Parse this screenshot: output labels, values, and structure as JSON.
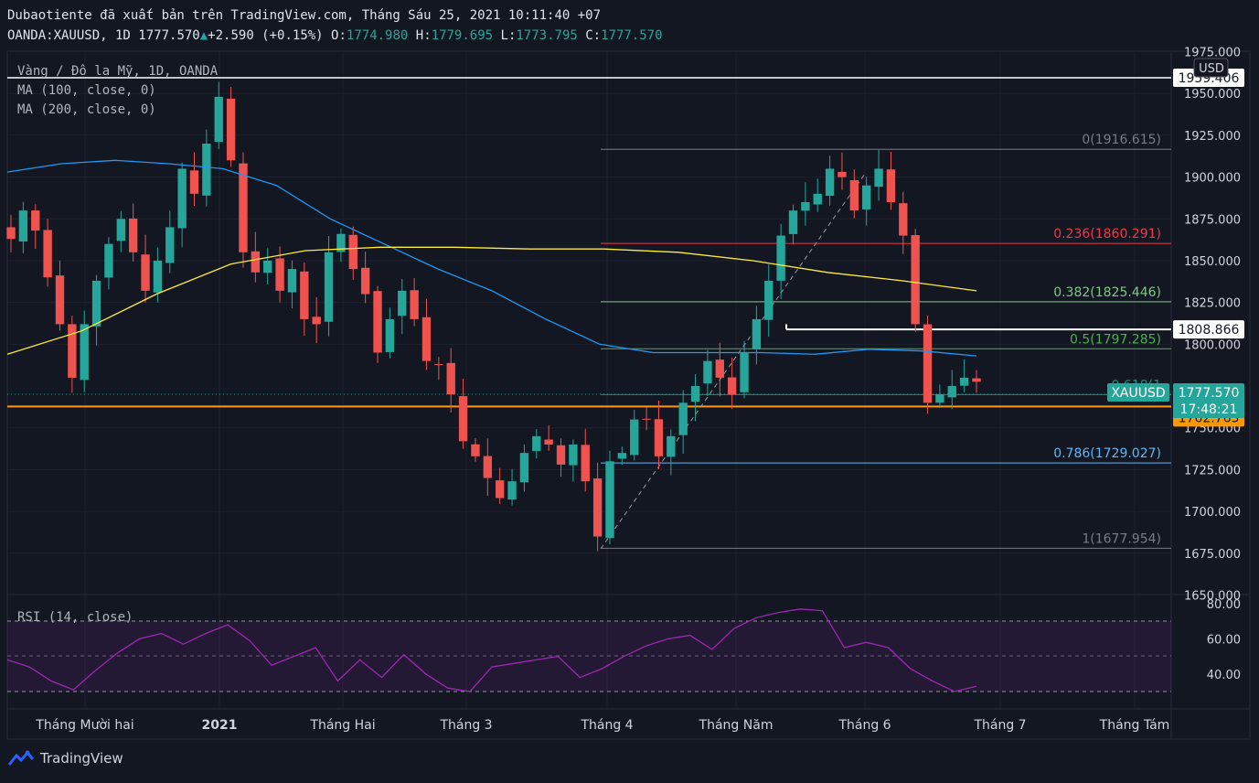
{
  "header": {
    "published_line": "Dubaotiente đã xuất bản trên TradingView.com, Tháng Sáu 25, 2021 10:11:40 +07",
    "symbol": "OANDA:XAUUSD, 1D",
    "last": "1777.570",
    "change_arrow": "▲",
    "change": "+2.590 (+0.15%)",
    "o_label": "O:",
    "o_val": "1774.980",
    "h_label": "H:",
    "h_val": "1779.695",
    "l_label": "L:",
    "l_val": "1773.795",
    "c_label": "C:",
    "c_val": "1777.570"
  },
  "legend": {
    "title": "Vàng / Đô la Mỹ, 1D, OANDA",
    "ma100": "MA (100, close, 0)",
    "ma200": "MA (200, close, 0)",
    "rsi": "RSI (14, close)"
  },
  "axis": {
    "currency": "USD",
    "price_ticks": [
      "1975.000",
      "1950.000",
      "1925.000",
      "1900.000",
      "1875.000",
      "1850.000",
      "1825.000",
      "1800.000",
      "1750.000",
      "1725.000",
      "1700.000",
      "1675.000",
      "1650.000"
    ],
    "rsi_ticks": [
      "80.00",
      "60.00",
      "40.00"
    ],
    "time_labels": [
      "Tháng Mười hai",
      "2021",
      "Tháng Hai",
      "Tháng 3",
      "Tháng 4",
      "Tháng Năm",
      "Tháng 6",
      "Tháng 7",
      "Tháng Tám"
    ]
  },
  "price_tags": {
    "level_1959": "1959.406",
    "level_1808": "1808.866",
    "symbol_tag": "XAUUSD",
    "last_price": "1777.570",
    "countdown": "17:48:21",
    "level_1762": "1762.763"
  },
  "fib_labels": [
    "0(1916.615)",
    "0.236(1860.291)",
    "0.382(1825.446)",
    "0.5(1797.285)",
    "0.618(1",
    "0.786(1729.027)",
    "1(1677.954)"
  ],
  "brand": "TradingView",
  "colors": {
    "up": "#26a69a",
    "down": "#ef5350",
    "ma100": "#2196f3",
    "ma200": "#ffeb3b",
    "rsi": "#9c27b0",
    "support": "#ff9800"
  },
  "chart_data": {
    "type": "candlestick",
    "symbol": "XAUUSD",
    "timeframe": "1D",
    "x_range": [
      "2020-11",
      "2021-08"
    ],
    "y_range": [
      1650,
      1975
    ],
    "rsi_range": [
      20,
      80
    ],
    "closes_approx": [
      1863,
      1880,
      1868,
      1840,
      1812,
      1780,
      1812,
      1838,
      1860,
      1875,
      1855,
      1832,
      1850,
      1870,
      1905,
      1890,
      1920,
      1948,
      1910,
      1855,
      1843,
      1850,
      1832,
      1845,
      1815,
      1812,
      1855,
      1866,
      1845,
      1830,
      1795,
      1815,
      1832,
      1815,
      1790,
      1788,
      1770,
      1742,
      1733,
      1720,
      1708,
      1718,
      1735,
      1745,
      1740,
      1728,
      1740,
      1718,
      1685,
      1730,
      1735,
      1755,
      1755,
      1733,
      1745,
      1765,
      1775,
      1790,
      1780,
      1770,
      1795,
      1815,
      1838,
      1865,
      1880,
      1885,
      1890,
      1905,
      1900,
      1880,
      1895,
      1905,
      1885,
      1865,
      1812,
      1765,
      1770,
      1775,
      1780,
      1777.57
    ],
    "horizontal_levels": [
      {
        "label": "1959.406",
        "price": 1959.406,
        "color": "#ffffff"
      },
      {
        "label": "1808.866",
        "price": 1808.866,
        "color": "#ffffff"
      },
      {
        "label": "1762.763",
        "price": 1762.763,
        "color": "#ff9800"
      }
    ],
    "fibonacci": [
      {
        "ratio": 0,
        "price": 1916.615
      },
      {
        "ratio": 0.236,
        "price": 1860.291
      },
      {
        "ratio": 0.382,
        "price": 1825.446
      },
      {
        "ratio": 0.5,
        "price": 1797.285
      },
      {
        "ratio": 0.618,
        "price": 1769.9
      },
      {
        "ratio": 0.786,
        "price": 1729.027
      },
      {
        "ratio": 1,
        "price": 1677.954
      }
    ],
    "ma100_approx": [
      1903,
      1908,
      1910,
      1908,
      1905,
      1895,
      1875,
      1860,
      1845,
      1832,
      1815,
      1800,
      1795,
      1795,
      1795,
      1794,
      1797,
      1796,
      1793
    ],
    "ma200_approx": [
      1794,
      1808,
      1830,
      1848,
      1856,
      1858,
      1858,
      1857,
      1857,
      1855,
      1850,
      1843,
      1838,
      1832
    ],
    "rsi_approx": [
      48,
      44,
      36,
      31,
      42,
      52,
      60,
      63,
      57,
      63,
      68,
      59,
      45,
      50,
      55,
      36,
      48,
      38,
      51,
      40,
      32,
      30,
      44,
      46,
      48,
      50,
      38,
      43,
      50,
      56,
      60,
      62,
      54,
      66,
      72,
      75,
      77,
      76,
      55,
      58,
      55,
      43,
      36,
      30,
      33
    ]
  }
}
